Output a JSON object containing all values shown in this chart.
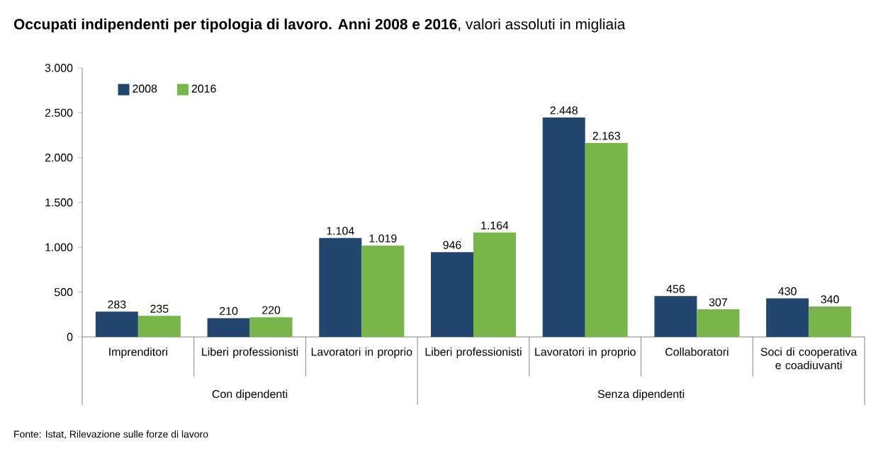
{
  "chart_data": {
    "type": "bar",
    "title": "**Occupati indipendenti per tipologia di lavoro. Anni 2008 e 2016**, valori assoluti in migliaia",
    "categories": [
      "Imprenditori",
      "Liberi professionisti",
      "Lavoratori in proprio",
      "Liberi professionisti",
      "Lavoratori in proprio",
      "Collaboratori",
      "Soci di cooperativa e coadiuvanti"
    ],
    "series": [
      {
        "name": "2008",
        "color": "#23466e",
        "values": [
          283,
          210,
          1104,
          946,
          2448,
          456,
          430
        ],
        "value_labels": [
          "283",
          "210",
          "1.104",
          "946",
          "2.448",
          "456",
          "430"
        ]
      },
      {
        "name": "2016",
        "color": "#78b64a",
        "values": [
          235,
          220,
          1019,
          1164,
          2163,
          307,
          340
        ],
        "value_labels": [
          "235",
          "220",
          "1.019",
          "1.164",
          "2.163",
          "307",
          "340"
        ]
      }
    ],
    "ylim": [
      0,
      3000
    ],
    "yticks": [
      0,
      {
        "value": 500,
        "label": "500"
      },
      {
        "value": 1000,
        "label": "1.000"
      },
      {
        "value": 1500,
        "label": "1.500"
      },
      {
        "value": 2000,
        "label": "2.000"
      },
      {
        "value": 2500,
        "label": "2.500"
      },
      {
        "value": 3000,
        "label": "3.000"
      }
    ],
    "legend": "top left",
    "annotations": [
      "Con dipendenti",
      "Senza dipendenti",
      "Fonte: Istat, Rilevazione sulle forze di lavoro"
    ]
  }
}
